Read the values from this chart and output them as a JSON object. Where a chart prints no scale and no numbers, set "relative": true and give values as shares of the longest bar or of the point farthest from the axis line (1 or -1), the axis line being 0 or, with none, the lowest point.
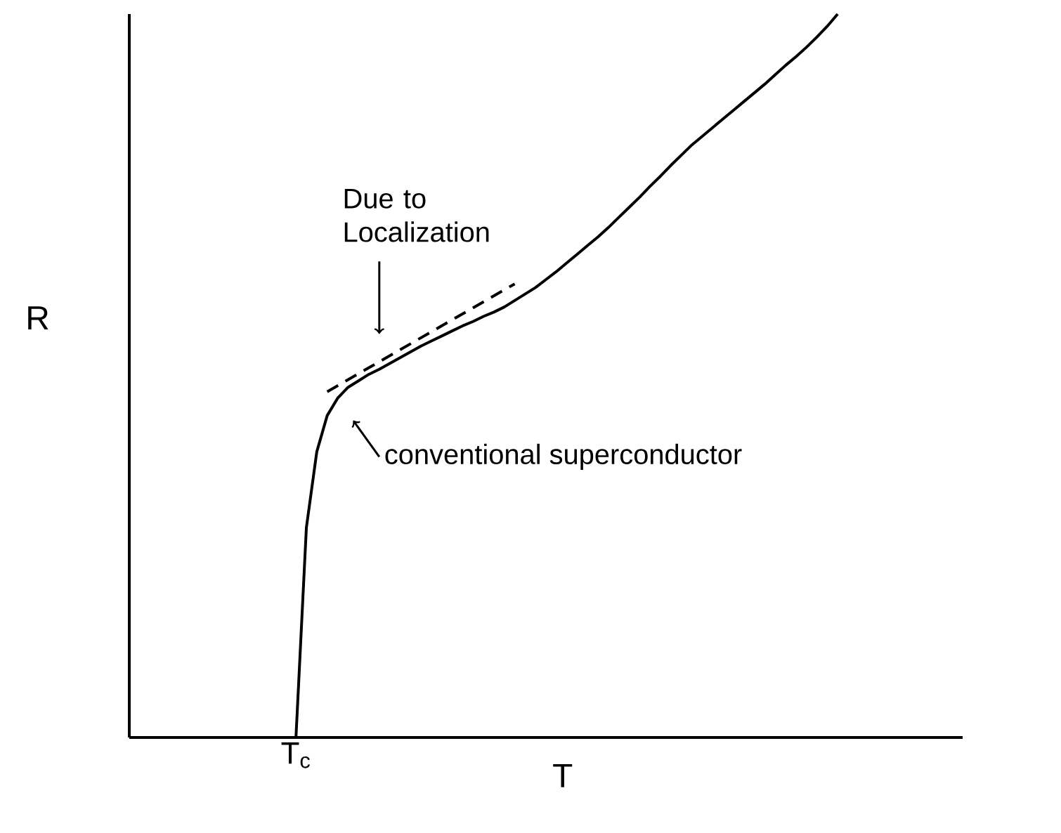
{
  "chart_data": {
    "type": "line",
    "relative": true,
    "xlabel": "T",
    "ylabel": "R",
    "marker": "none",
    "categories": [
      null,
      null,
      null,
      null,
      null,
      null,
      null,
      null,
      null,
      null,
      null,
      null,
      null,
      null,
      null,
      null,
      null,
      null,
      null,
      null,
      null,
      null,
      null,
      null,
      null,
      null,
      null,
      null,
      null,
      null,
      null,
      null,
      null,
      null,
      null,
      null,
      null,
      null,
      null,
      null,
      null,
      null,
      null,
      null,
      null,
      null,
      null,
      null,
      null,
      null,
      null,
      null,
      null,
      null,
      null,
      null,
      null,
      null,
      null,
      null,
      null,
      null,
      null,
      null,
      null,
      null,
      null,
      null,
      null,
      null,
      null,
      null,
      null,
      null,
      null,
      null,
      null,
      null,
      null,
      null,
      null
    ],
    "series": [
      {
        "color": "#000000",
        "line_style": "solid",
        "values": [
          null,
          null,
          null,
          null,
          null,
          null,
          null,
          null,
          null,
          null,
          null,
          null,
          null,
          null,
          null,
          null,
          0,
          0.29,
          0.395,
          0.445,
          0.469,
          0.484,
          0.493,
          0.502,
          0.509,
          0.517,
          0.525,
          0.533,
          0.541,
          0.548,
          0.555,
          0.562,
          0.569,
          0.575,
          0.582,
          0.588,
          0.595,
          0.604,
          0.613,
          0.622,
          0.633,
          0.644,
          0.656,
          0.668,
          0.68,
          0.692,
          0.705,
          0.719,
          0.733,
          0.747,
          0.762,
          0.776,
          0.791,
          0.805,
          0.819,
          0.831,
          0.843,
          0.855,
          0.867,
          0.879,
          0.891,
          0.903,
          0.916,
          0.929,
          0.941,
          0.954,
          0.968,
          0.983,
          1,
          null,
          null,
          null,
          null,
          null,
          null,
          null,
          null,
          null,
          null,
          null,
          null
        ]
      },
      {
        "color": "#000000",
        "line_style": "dashed",
        "values": [
          null,
          null,
          null,
          null,
          null,
          null,
          null,
          null,
          null,
          null,
          null,
          null,
          null,
          null,
          null,
          null,
          null,
          null,
          null,
          0.478,
          null,
          null,
          null,
          null,
          null,
          null,
          null,
          null,
          null,
          null,
          null,
          null,
          null,
          null,
          null,
          null,
          null,
          0.627,
          null,
          null,
          null,
          null,
          null,
          null,
          null,
          null,
          null,
          null,
          null,
          null,
          null,
          null,
          null,
          null,
          null,
          null,
          null,
          null,
          null,
          null,
          null,
          null,
          null,
          null,
          null,
          null,
          null,
          null,
          null,
          null,
          null,
          null,
          null,
          null,
          null,
          null,
          null,
          null,
          null,
          null,
          null
        ]
      }
    ],
    "annotations": [
      "T$_{c}$",
      "Due to Localization",
      "conventional superconductor"
    ]
  }
}
